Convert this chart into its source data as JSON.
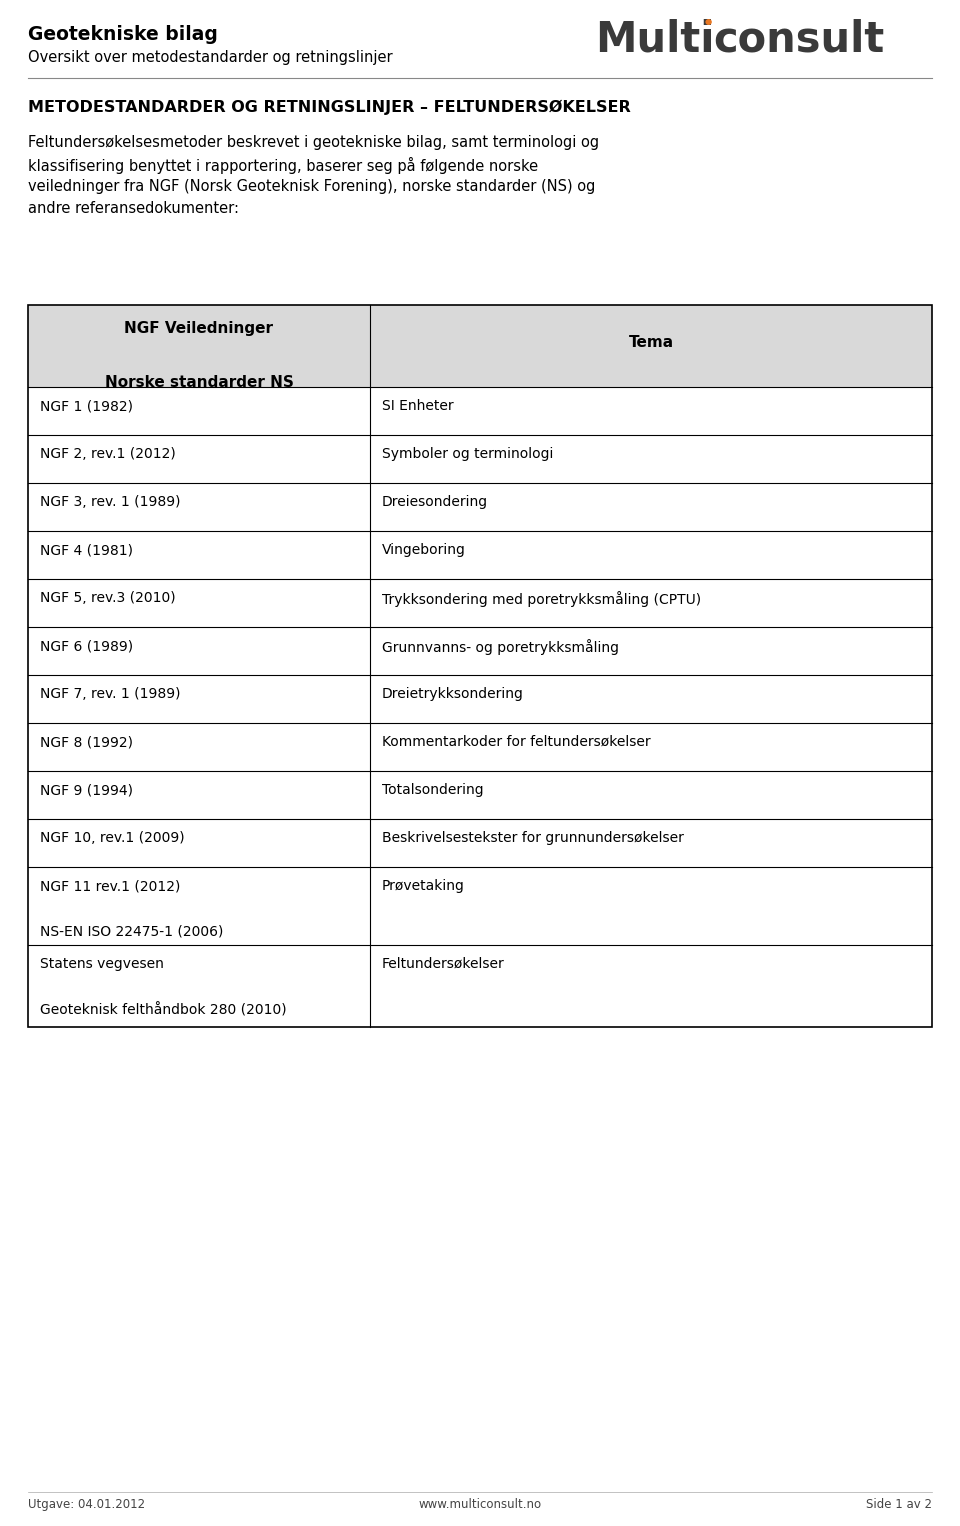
{
  "page_width": 9.6,
  "page_height": 15.26,
  "bg_color": "#ffffff",
  "header_bold_title": "Geotekniske bilag",
  "header_subtitle": "Oversikt over metodestandarder og retningslinjer",
  "logo_dot_color": "#e87722",
  "section_title": "METODESTANDARDER OG RETNINGSLINJER – FELTUNDERSØKELSER",
  "body_lines": [
    "Feltundersøkelsesmetoder beskrevet i geotekniske bilag, samt terminologi og",
    "klassifisering benyttet i rapportering, baserer seg på følgende norske",
    "veiledninger fra NGF (Norsk Geoteknisk Forening), norske standarder (NS) og",
    "andre referansedokumenter:"
  ],
  "table_header_bg": "#d9d9d9",
  "table_rows": [
    {
      "col1": "NGF 1 (1982)",
      "col2": "SI Enheter",
      "tall": false
    },
    {
      "col1": "NGF 2, rev.1 (2012)",
      "col2": "Symboler og terminologi",
      "tall": false
    },
    {
      "col1": "NGF 3, rev. 1 (1989)",
      "col2": "Dreiesondering",
      "tall": false
    },
    {
      "col1": "NGF 4 (1981)",
      "col2": "Vingeboring",
      "tall": false
    },
    {
      "col1": "NGF 5, rev.3 (2010)",
      "col2": "Trykksondering med poretrykksmåling (CPTU)",
      "tall": false
    },
    {
      "col1": "NGF 6 (1989)",
      "col2": "Grunnvanns- og poretrykksmåling",
      "tall": false
    },
    {
      "col1": "NGF 7, rev. 1 (1989)",
      "col2": "Dreietrykksondering",
      "tall": false
    },
    {
      "col1": "NGF 8 (1992)",
      "col2": "Kommentarkoder for feltundersøkelser",
      "tall": false
    },
    {
      "col1": "NGF 9 (1994)",
      "col2": "Totalsondering",
      "tall": false
    },
    {
      "col1": "NGF 10, rev.1 (2009)",
      "col2": "Beskrivelsestekster for grunnundersøkelser",
      "tall": false
    },
    {
      "col1": "NGF 11 rev.1 (2012)\n\nNS-EN ISO 22475-1 (2006)",
      "col2": "Prøvetaking",
      "tall": true
    },
    {
      "col1": "Statens vegvesen\n\nGeoteknisk felthåndbok 280 (2010)",
      "col2": "Feltundersøkelser",
      "tall": true
    }
  ],
  "footer_left": "Utgave: 04.01.2012",
  "footer_center": "www.multiconsult.no",
  "footer_right": "Side 1 av 2"
}
